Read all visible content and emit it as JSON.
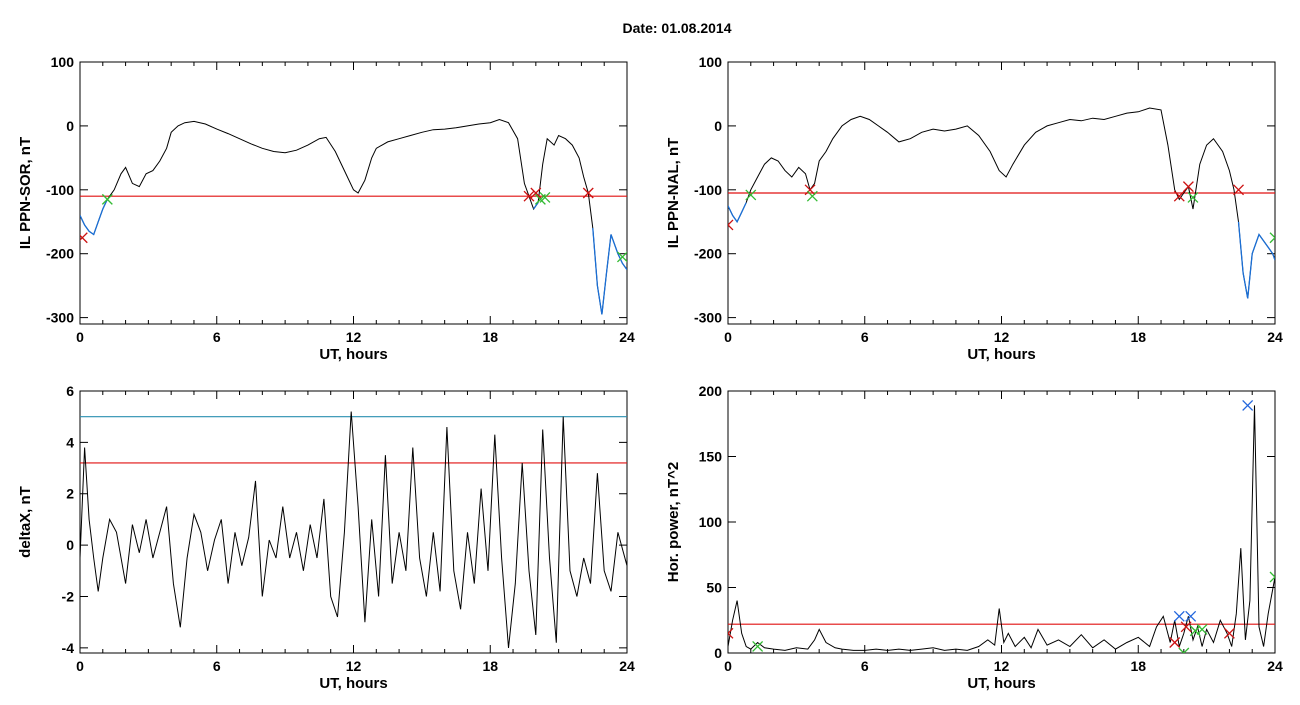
{
  "header": {
    "date_text": "Date:  01.08.2014"
  },
  "colors": {
    "trace": "#000000",
    "blue_trace": "#1a6fd6",
    "red_line": "#e01010",
    "teal_line": "#2a8fb0",
    "marker_red": "#cc1111",
    "marker_green": "#33bb33",
    "marker_blue": "#2266dd"
  },
  "chart_data": [
    {
      "id": "p1",
      "type": "line",
      "xlabel": "UT, hours",
      "ylabel": "IL PPN-SOR, nT",
      "xlim": [
        0,
        24
      ],
      "ylim": [
        -310,
        100
      ],
      "xticks": [
        "0",
        "6",
        "12",
        "18",
        "24"
      ],
      "yticks": [
        "100",
        "0",
        "-100",
        "-200",
        "-300"
      ],
      "ytick_values": [
        100,
        0,
        -100,
        -200,
        -300
      ],
      "threshold": {
        "y": -110,
        "color": "red"
      },
      "series": [
        {
          "x": [
            0,
            0.2,
            0.4,
            0.6,
            0.8,
            1.0,
            1.2,
            1.5,
            1.8,
            2.0,
            2.3,
            2.6,
            2.9,
            3.2,
            3.5,
            3.8,
            4.0,
            4.3,
            4.6,
            5.0,
            5.5,
            6.0,
            6.5,
            7.0,
            7.5,
            8.0,
            8.5,
            9.0,
            9.5,
            10.0,
            10.5,
            10.8,
            11.2,
            11.6,
            12.0,
            12.2,
            12.5,
            12.8,
            13.0,
            13.5,
            14.0,
            14.5,
            15.0,
            15.5,
            16.0,
            16.5,
            17.0,
            17.5,
            18.0,
            18.4,
            18.8,
            19.2,
            19.5,
            19.7,
            19.9,
            20.1,
            20.3,
            20.5,
            20.8,
            21.0,
            21.3,
            21.6,
            21.9,
            22.1,
            22.3,
            22.5,
            22.7,
            22.9,
            23.1,
            23.3,
            23.6,
            23.8,
            24.0
          ],
          "y": [
            -140,
            -155,
            -165,
            -170,
            -150,
            -130,
            -115,
            -100,
            -75,
            -65,
            -90,
            -95,
            -75,
            -70,
            -55,
            -35,
            -10,
            0,
            5,
            7,
            3,
            -5,
            -12,
            -20,
            -28,
            -35,
            -40,
            -42,
            -38,
            -30,
            -20,
            -18,
            -40,
            -70,
            -100,
            -105,
            -85,
            -50,
            -35,
            -25,
            -20,
            -15,
            -10,
            -6,
            -5,
            -3,
            0,
            3,
            5,
            10,
            5,
            -20,
            -90,
            -110,
            -130,
            -120,
            -60,
            -20,
            -30,
            -15,
            -20,
            -30,
            -50,
            -80,
            -105,
            -160,
            -250,
            -295,
            -230,
            -170,
            -200,
            -215,
            -225
          ],
          "color": "black"
        }
      ],
      "markers": [
        {
          "x": 0.1,
          "y": -175,
          "kind": "x",
          "color": "red"
        },
        {
          "x": 1.2,
          "y": -115,
          "kind": "x",
          "color": "green"
        },
        {
          "x": 19.7,
          "y": -110,
          "kind": "x",
          "color": "red"
        },
        {
          "x": 20.0,
          "y": -105,
          "kind": "x",
          "color": "red"
        },
        {
          "x": 20.2,
          "y": -115,
          "kind": "x",
          "color": "green"
        },
        {
          "x": 20.4,
          "y": -112,
          "kind": "x",
          "color": "green"
        },
        {
          "x": 22.3,
          "y": -105,
          "kind": "x",
          "color": "red"
        },
        {
          "x": 23.8,
          "y": -205,
          "kind": "x",
          "color": "green"
        }
      ]
    },
    {
      "id": "p2",
      "type": "line",
      "xlabel": "UT, hours",
      "ylabel": "IL PPN-NAL, nT",
      "xlim": [
        0,
        24
      ],
      "ylim": [
        -310,
        100
      ],
      "xticks": [
        "0",
        "6",
        "12",
        "18",
        "24"
      ],
      "yticks": [
        "100",
        "0",
        "-100",
        "-200",
        "-300"
      ],
      "ytick_values": [
        100,
        0,
        -100,
        -200,
        -300
      ],
      "threshold": {
        "y": -105,
        "color": "red"
      },
      "series": [
        {
          "x": [
            0,
            0.2,
            0.4,
            0.6,
            0.8,
            1.0,
            1.3,
            1.6,
            1.9,
            2.2,
            2.5,
            2.8,
            3.1,
            3.4,
            3.6,
            3.8,
            4.0,
            4.3,
            4.6,
            5.0,
            5.4,
            5.8,
            6.2,
            6.6,
            7.0,
            7.5,
            8.0,
            8.5,
            9.0,
            9.5,
            10.0,
            10.5,
            11.0,
            11.5,
            11.9,
            12.2,
            12.5,
            13.0,
            13.5,
            14.0,
            14.5,
            15.0,
            15.5,
            16.0,
            16.5,
            17.0,
            17.5,
            18.0,
            18.5,
            19.0,
            19.3,
            19.6,
            19.8,
            20.0,
            20.2,
            20.4,
            20.7,
            21.0,
            21.3,
            21.7,
            22.0,
            22.2,
            22.4,
            22.6,
            22.8,
            23.0,
            23.3,
            23.6,
            23.9,
            24.0
          ],
          "y": [
            -125,
            -140,
            -150,
            -135,
            -120,
            -100,
            -80,
            -60,
            -50,
            -55,
            -70,
            -80,
            -65,
            -75,
            -100,
            -90,
            -55,
            -40,
            -20,
            0,
            10,
            15,
            10,
            0,
            -10,
            -25,
            -20,
            -10,
            -5,
            -8,
            -5,
            0,
            -15,
            -40,
            -70,
            -80,
            -60,
            -30,
            -10,
            0,
            5,
            10,
            8,
            12,
            10,
            15,
            20,
            22,
            28,
            25,
            -30,
            -100,
            -115,
            -105,
            -95,
            -130,
            -60,
            -30,
            -20,
            -40,
            -70,
            -100,
            -150,
            -230,
            -270,
            -200,
            -170,
            -185,
            -200,
            -210
          ],
          "color": "black"
        }
      ],
      "markers": [
        {
          "x": 0.0,
          "y": -155,
          "kind": "x",
          "color": "red"
        },
        {
          "x": 1.0,
          "y": -108,
          "kind": "x",
          "color": "green"
        },
        {
          "x": 3.6,
          "y": -100,
          "kind": "x",
          "color": "red"
        },
        {
          "x": 3.7,
          "y": -110,
          "kind": "x",
          "color": "green"
        },
        {
          "x": 19.8,
          "y": -110,
          "kind": "x",
          "color": "red"
        },
        {
          "x": 20.2,
          "y": -95,
          "kind": "x",
          "color": "red"
        },
        {
          "x": 20.4,
          "y": -112,
          "kind": "x",
          "color": "green"
        },
        {
          "x": 22.4,
          "y": -100,
          "kind": "x",
          "color": "red"
        },
        {
          "x": 24.0,
          "y": -175,
          "kind": "x",
          "color": "green"
        }
      ]
    },
    {
      "id": "p3",
      "type": "line",
      "xlabel": "UT, hours",
      "ylabel": "deltaX, nT",
      "xlim": [
        0,
        24
      ],
      "ylim": [
        -4.2,
        6
      ],
      "xticks": [
        "0",
        "6",
        "12",
        "18",
        "24"
      ],
      "yticks": [
        "6",
        "4",
        "2",
        "0",
        "-2",
        "-4"
      ],
      "ytick_values": [
        6,
        4,
        2,
        0,
        -2,
        -4
      ],
      "threshold": {
        "y": 3.2,
        "color": "red"
      },
      "threshold2": {
        "y": 5.0,
        "color": "teal"
      },
      "series": [
        {
          "x": [
            0,
            0.2,
            0.4,
            0.6,
            0.8,
            1.0,
            1.3,
            1.6,
            2.0,
            2.3,
            2.6,
            2.9,
            3.2,
            3.5,
            3.8,
            4.1,
            4.4,
            4.7,
            5.0,
            5.3,
            5.6,
            5.9,
            6.2,
            6.5,
            6.8,
            7.1,
            7.4,
            7.7,
            8.0,
            8.3,
            8.6,
            8.9,
            9.2,
            9.5,
            9.8,
            10.1,
            10.4,
            10.7,
            11.0,
            11.3,
            11.6,
            11.9,
            12.2,
            12.5,
            12.8,
            13.1,
            13.4,
            13.7,
            14.0,
            14.3,
            14.6,
            14.9,
            15.2,
            15.5,
            15.8,
            16.1,
            16.4,
            16.7,
            17.0,
            17.3,
            17.6,
            17.9,
            18.2,
            18.5,
            18.8,
            19.1,
            19.4,
            19.7,
            20.0,
            20.3,
            20.6,
            20.9,
            21.2,
            21.5,
            21.8,
            22.1,
            22.4,
            22.7,
            23.0,
            23.3,
            23.6,
            24.0
          ],
          "y": [
            -0.5,
            3.8,
            1.0,
            -0.5,
            -1.8,
            -0.5,
            1.0,
            0.5,
            -1.5,
            0.8,
            -0.3,
            1.0,
            -0.5,
            0.5,
            1.5,
            -1.5,
            -3.2,
            -0.5,
            1.2,
            0.5,
            -1.0,
            0.2,
            1.0,
            -1.5,
            0.5,
            -0.8,
            0.3,
            2.5,
            -2.0,
            0.2,
            -0.5,
            1.5,
            -0.5,
            0.5,
            -1.0,
            0.8,
            -0.5,
            1.8,
            -2.0,
            -2.8,
            0.5,
            5.2,
            1.5,
            -3.0,
            1.0,
            -2.0,
            3.5,
            -1.5,
            0.5,
            -1.0,
            3.8,
            -0.5,
            -2.0,
            0.5,
            -1.8,
            4.6,
            -1.0,
            -2.5,
            0.5,
            -1.5,
            2.2,
            -1.0,
            4.3,
            -0.5,
            -4.0,
            -1.5,
            3.2,
            -1.0,
            -3.5,
            4.5,
            -0.5,
            -3.8,
            5.0,
            -1.0,
            -2.0,
            -0.5,
            -1.5,
            2.8,
            -1.0,
            -1.8,
            0.5,
            -0.8
          ],
          "color": "black"
        }
      ],
      "markers": []
    },
    {
      "id": "p4",
      "type": "line",
      "xlabel": "UT, hours",
      "ylabel": "Hor. power, nT^2",
      "xlim": [
        0,
        24
      ],
      "ylim": [
        0,
        200
      ],
      "xticks": [
        "0",
        "6",
        "12",
        "18",
        "24"
      ],
      "yticks": [
        "200",
        "150",
        "100",
        "50",
        "0"
      ],
      "ytick_values": [
        200,
        150,
        100,
        50,
        0
      ],
      "threshold": {
        "y": 22,
        "color": "red"
      },
      "series": [
        {
          "x": [
            0,
            0.2,
            0.4,
            0.6,
            0.8,
            1.0,
            1.3,
            1.6,
            2.0,
            2.5,
            3.0,
            3.5,
            3.8,
            4.0,
            4.3,
            4.7,
            5.0,
            5.5,
            6.0,
            6.5,
            7.0,
            7.5,
            8.0,
            8.5,
            9.0,
            9.5,
            10.0,
            10.5,
            11.0,
            11.4,
            11.7,
            11.9,
            12.1,
            12.3,
            12.6,
            13.0,
            13.3,
            13.6,
            14.0,
            14.5,
            15.0,
            15.5,
            16.0,
            16.5,
            17.0,
            17.5,
            18.0,
            18.5,
            18.8,
            19.1,
            19.4,
            19.6,
            19.8,
            20.0,
            20.2,
            20.4,
            20.6,
            20.8,
            21.0,
            21.3,
            21.6,
            21.9,
            22.1,
            22.3,
            22.5,
            22.7,
            22.9,
            23.1,
            23.3,
            23.5,
            23.7,
            24.0
          ],
          "y": [
            5,
            25,
            40,
            15,
            5,
            3,
            8,
            4,
            3,
            2,
            4,
            3,
            10,
            18,
            8,
            4,
            3,
            2,
            2,
            3,
            2,
            3,
            2,
            3,
            4,
            2,
            3,
            2,
            5,
            10,
            6,
            34,
            8,
            15,
            5,
            12,
            4,
            18,
            6,
            10,
            5,
            14,
            4,
            10,
            3,
            8,
            12,
            5,
            20,
            28,
            8,
            25,
            5,
            15,
            28,
            10,
            20,
            5,
            18,
            8,
            25,
            15,
            5,
            30,
            80,
            10,
            40,
            189,
            20,
            5,
            30,
            58
          ],
          "color": "black"
        }
      ],
      "markers": [
        {
          "x": 0.0,
          "y": 15,
          "kind": "x",
          "color": "red"
        },
        {
          "x": 1.3,
          "y": 5,
          "kind": "x",
          "color": "green"
        },
        {
          "x": 19.6,
          "y": 8,
          "kind": "x",
          "color": "red"
        },
        {
          "x": 19.8,
          "y": 28,
          "kind": "x",
          "color": "blue"
        },
        {
          "x": 20.0,
          "y": 0,
          "kind": "x",
          "color": "green"
        },
        {
          "x": 20.1,
          "y": 20,
          "kind": "x",
          "color": "red"
        },
        {
          "x": 20.3,
          "y": 28,
          "kind": "x",
          "color": "blue"
        },
        {
          "x": 20.5,
          "y": 17,
          "kind": "x",
          "color": "green"
        },
        {
          "x": 20.8,
          "y": 18,
          "kind": "x",
          "color": "green"
        },
        {
          "x": 22.0,
          "y": 15,
          "kind": "x",
          "color": "red"
        },
        {
          "x": 22.8,
          "y": 189,
          "kind": "x",
          "color": "blue"
        },
        {
          "x": 24.0,
          "y": 58,
          "kind": "x",
          "color": "green"
        }
      ]
    }
  ]
}
